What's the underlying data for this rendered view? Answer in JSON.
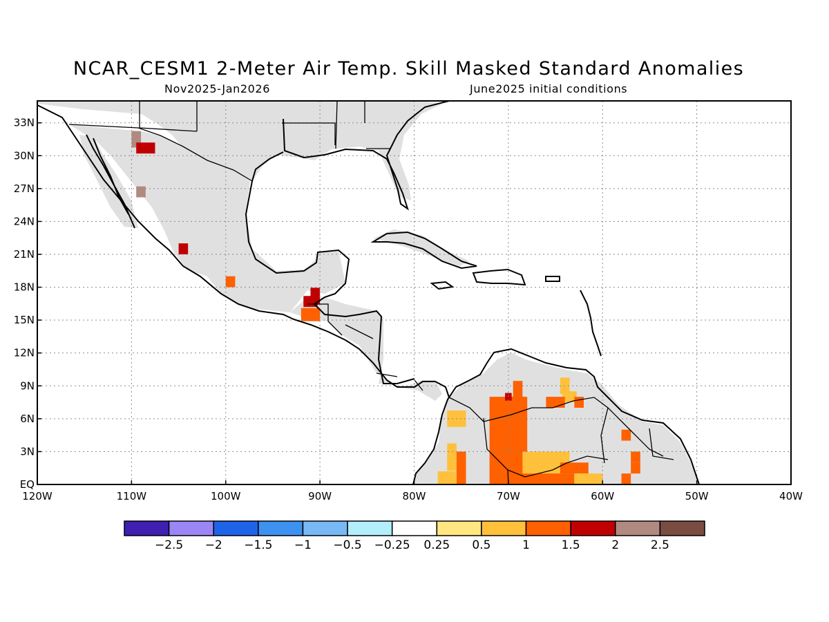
{
  "title": "NCAR_CESM1 2-Meter Air Temp. Skill Masked Standard Anomalies",
  "subtitle_left": "Nov2025-Jan2026",
  "subtitle_right": "June2025 initial conditions",
  "chart_data": {
    "type": "heatmap",
    "projection": "lat-lon",
    "lon_range": [
      -120,
      -40
    ],
    "lat_range": [
      0,
      35
    ],
    "lon_ticks": [
      {
        "value": -120,
        "label": "120W"
      },
      {
        "value": -110,
        "label": "110W"
      },
      {
        "value": -100,
        "label": "100W"
      },
      {
        "value": -90,
        "label": "90W"
      },
      {
        "value": -80,
        "label": "80W"
      },
      {
        "value": -70,
        "label": "70W"
      },
      {
        "value": -60,
        "label": "60W"
      },
      {
        "value": -50,
        "label": "50W"
      },
      {
        "value": -40,
        "label": "40W"
      }
    ],
    "lat_ticks": [
      {
        "value": 0,
        "label": "EQ"
      },
      {
        "value": 3,
        "label": "3N"
      },
      {
        "value": 6,
        "label": "6N"
      },
      {
        "value": 9,
        "label": "9N"
      },
      {
        "value": 12,
        "label": "12N"
      },
      {
        "value": 15,
        "label": "15N"
      },
      {
        "value": 18,
        "label": "18N"
      },
      {
        "value": 21,
        "label": "21N"
      },
      {
        "value": 24,
        "label": "24N"
      },
      {
        "value": 27,
        "label": "27N"
      },
      {
        "value": 30,
        "label": "30N"
      },
      {
        "value": 33,
        "label": "33N"
      }
    ],
    "grid": true,
    "mask_color": "#e0e0e0",
    "colorbar": {
      "colors": [
        "#3f20b0",
        "#9b86f5",
        "#1f64e8",
        "#3d91f0",
        "#78b8f5",
        "#b2eefc",
        "#ffffff",
        "#ffe680",
        "#ffc03c",
        "#ff6000",
        "#c00000",
        "#b08a80",
        "#7a4c42"
      ],
      "labels": [
        "-2.5",
        "-2",
        "-1.5",
        "-1",
        "-0.5",
        "-0.25",
        "0.25",
        "0.5",
        "1",
        "1.5",
        "2",
        "2.5"
      ]
    },
    "anomaly_cells": [
      {
        "lon": -109.5,
        "lat": 31.5,
        "dlon": 1.0,
        "dlat": 1.5,
        "value": 2.2
      },
      {
        "lon": -108.5,
        "lat": 30.7,
        "dlon": 2.0,
        "dlat": 1.0,
        "value": 1.8
      },
      {
        "lon": -109.0,
        "lat": 26.7,
        "dlon": 1.0,
        "dlat": 1.0,
        "value": 2.2
      },
      {
        "lon": -104.5,
        "lat": 21.5,
        "dlon": 1.0,
        "dlat": 1.0,
        "value": 1.8
      },
      {
        "lon": -99.5,
        "lat": 18.5,
        "dlon": 1.0,
        "dlat": 1.0,
        "value": 1.2
      },
      {
        "lon": -91.0,
        "lat": 16.7,
        "dlon": 1.5,
        "dlat": 1.0,
        "value": 1.8
      },
      {
        "lon": -90.5,
        "lat": 17.2,
        "dlon": 1.0,
        "dlat": 1.5,
        "value": 1.8
      },
      {
        "lon": -91.0,
        "lat": 15.5,
        "dlon": 2.0,
        "dlat": 1.2,
        "value": 1.2
      },
      {
        "lon": -75.5,
        "lat": 6.0,
        "dlon": 2.0,
        "dlat": 1.5,
        "value": 0.7
      },
      {
        "lon": -76.0,
        "lat": 2.5,
        "dlon": 1.0,
        "dlat": 2.5,
        "value": 0.7
      },
      {
        "lon": -75.0,
        "lat": 1.5,
        "dlon": 1.0,
        "dlat": 3.0,
        "value": 1.2
      },
      {
        "lon": -76.5,
        "lat": 0.6,
        "dlon": 2.0,
        "dlat": 1.2,
        "value": 0.7
      },
      {
        "lon": -70.0,
        "lat": 4.0,
        "dlon": 4.0,
        "dlat": 8.0,
        "value": 1.2
      },
      {
        "lon": -69.0,
        "lat": 8.7,
        "dlon": 1.0,
        "dlat": 1.5,
        "value": 1.2
      },
      {
        "lon": -69.5,
        "lat": 7.5,
        "dlon": 2.5,
        "dlat": 1.0,
        "value": 1.2
      },
      {
        "lon": -70.0,
        "lat": 8.0,
        "dlon": 0.7,
        "dlat": 0.7,
        "value": 1.8
      },
      {
        "lon": -64.0,
        "lat": 9.0,
        "dlon": 1.0,
        "dlat": 1.5,
        "value": 0.7
      },
      {
        "lon": -63.5,
        "lat": 8.0,
        "dlon": 1.5,
        "dlat": 1.0,
        "value": 0.7
      },
      {
        "lon": -62.5,
        "lat": 7.5,
        "dlon": 1.0,
        "dlat": 1.0,
        "value": 1.2
      },
      {
        "lon": -65.0,
        "lat": 7.5,
        "dlon": 2.0,
        "dlat": 1.0,
        "value": 1.2
      },
      {
        "lon": -66.0,
        "lat": 2.0,
        "dlon": 5.0,
        "dlat": 2.0,
        "value": 0.7
      },
      {
        "lon": -66.0,
        "lat": 0.5,
        "dlon": 6.0,
        "dlat": 1.0,
        "value": 1.2
      },
      {
        "lon": -63.0,
        "lat": 1.5,
        "dlon": 3.0,
        "dlat": 1.0,
        "value": 1.2
      },
      {
        "lon": -61.5,
        "lat": 0.5,
        "dlon": 3.0,
        "dlat": 1.0,
        "value": 0.7
      },
      {
        "lon": -57.5,
        "lat": 4.5,
        "dlon": 1.0,
        "dlat": 1.0,
        "value": 1.2
      },
      {
        "lon": -56.5,
        "lat": 2.5,
        "dlon": 1.0,
        "dlat": 1.0,
        "value": 1.2
      },
      {
        "lon": -56.5,
        "lat": 1.5,
        "dlon": 1.0,
        "dlat": 1.0,
        "value": 1.2
      },
      {
        "lon": -57.5,
        "lat": 0.5,
        "dlon": 1.0,
        "dlat": 1.0,
        "value": 1.2
      }
    ]
  }
}
